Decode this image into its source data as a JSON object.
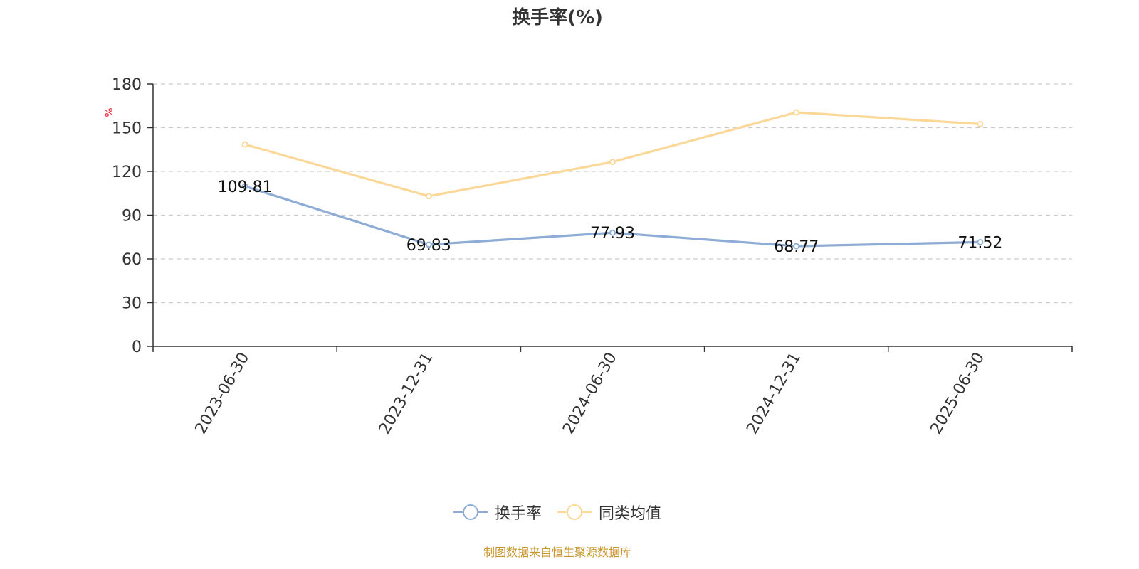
{
  "chart_data": {
    "type": "line",
    "title": "换手率(%)",
    "ylabel": "%",
    "xlabel": "",
    "categories": [
      "2023-06-30",
      "2023-12-31",
      "2024-06-30",
      "2024-12-31",
      "2025-06-30"
    ],
    "ylim": [
      0,
      180
    ],
    "yticks": [
      0,
      30,
      60,
      90,
      120,
      150,
      180
    ],
    "grid": true,
    "legend_position": "bottom-center",
    "series": [
      {
        "name": "换手率",
        "color": "#8eacd6",
        "values": [
          109.81,
          69.83,
          77.93,
          68.77,
          71.52
        ],
        "data_labels": [
          "109.81",
          "69.83",
          "77.93",
          "68.77",
          "71.52"
        ]
      },
      {
        "name": "同类均值",
        "color": "#fcd898",
        "values": [
          138.5,
          103.0,
          126.5,
          160.5,
          152.5
        ]
      }
    ]
  },
  "source_note": "制图数据来自恒生聚源数据库"
}
